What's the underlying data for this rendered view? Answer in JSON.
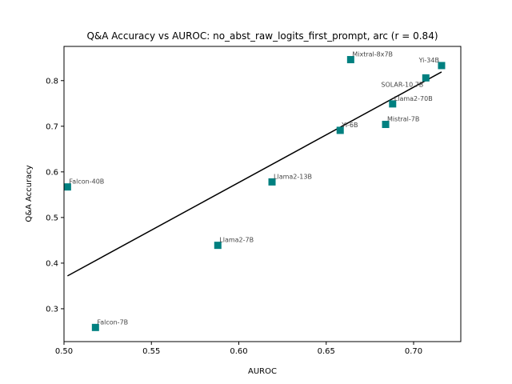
{
  "chart_data": {
    "type": "scatter",
    "title": "Q&A Accuracy vs AUROC: no_abst_raw_logits_first_prompt, arc (r = 0.84)",
    "xlabel": "AUROC",
    "ylabel": "Q&A Accuracy",
    "xlim": [
      0.5,
      0.727
    ],
    "ylim": [
      0.228,
      0.875
    ],
    "xticks": [
      "0.50",
      "0.55",
      "0.60",
      "0.65",
      "0.70"
    ],
    "yticks": [
      "0.3",
      "0.4",
      "0.5",
      "0.6",
      "0.7",
      "0.8"
    ],
    "grid": false,
    "marker_color": "#008080",
    "fit_line_color": "#000000",
    "points": [
      {
        "label": "Falcon-40B",
        "x": 0.502,
        "y": 0.567
      },
      {
        "label": "Falcon-7B",
        "x": 0.518,
        "y": 0.259
      },
      {
        "label": "Llama2-7B",
        "x": 0.588,
        "y": 0.439
      },
      {
        "label": "Llama2-13B",
        "x": 0.619,
        "y": 0.578
      },
      {
        "label": "Yi-6B",
        "x": 0.658,
        "y": 0.691
      },
      {
        "label": "Mixtral-8x7B",
        "x": 0.664,
        "y": 0.846
      },
      {
        "label": "Mistral-7B",
        "x": 0.684,
        "y": 0.704
      },
      {
        "label": "Llama2-70B",
        "x": 0.688,
        "y": 0.749
      },
      {
        "label": "SOLAR-10.7B",
        "x": 0.707,
        "y": 0.806
      },
      {
        "label": "Yi-34B",
        "x": 0.716,
        "y": 0.833
      }
    ],
    "fit_line": {
      "x": [
        0.502,
        0.716
      ],
      "y": [
        0.372,
        0.819
      ]
    }
  }
}
